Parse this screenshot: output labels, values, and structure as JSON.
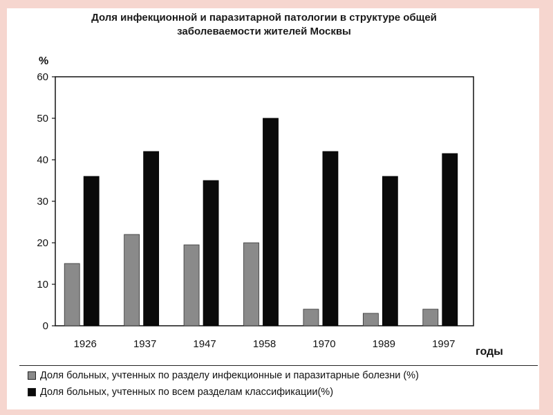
{
  "title_line1": "Доля инфекционной и паразитарной патологии в структуре общей",
  "title_line2": "заболеваемости жителей Москвы",
  "chart_data": {
    "type": "bar",
    "title": "Доля инфекционной и паразитарной патологии в структуре общей заболеваемости жителей Москвы",
    "ylabel": "%",
    "xlabel": "годы",
    "ylim": [
      0,
      60
    ],
    "yticks": [
      0,
      10,
      20,
      30,
      40,
      50,
      60
    ],
    "grid": false,
    "legend_position": "bottom",
    "categories": [
      "1926",
      "1937",
      "1947",
      "1958",
      "1970",
      "1989",
      "1997"
    ],
    "series": [
      {
        "name": "Доля больных, учтенных по разделу инфекционные и паразитарные болезни (%)",
        "color": "#8a8a8a",
        "values": [
          15,
          22,
          19.5,
          20,
          4,
          3,
          4
        ]
      },
      {
        "name": "Доля больных, учтенных по всем разделам классификации(%)",
        "color": "#0a0a0a",
        "values": [
          36,
          42,
          35,
          50,
          42,
          36,
          41.5
        ]
      }
    ]
  }
}
